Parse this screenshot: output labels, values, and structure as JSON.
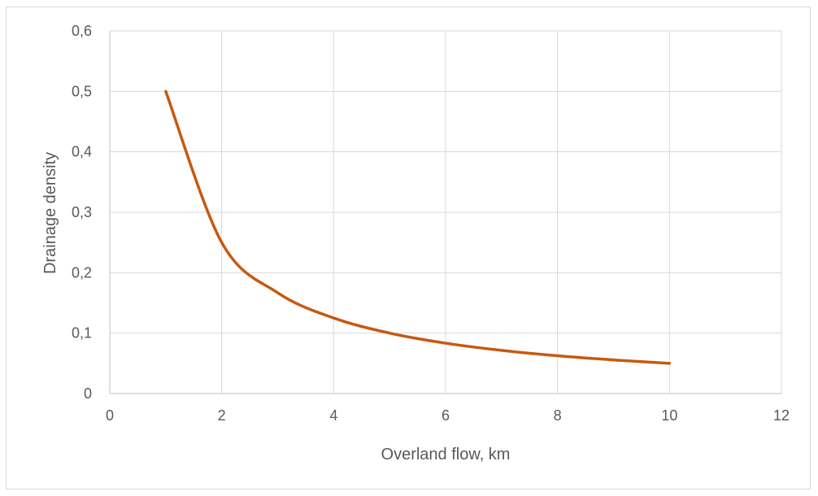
{
  "chart_data": {
    "type": "line",
    "title": "",
    "xlabel": "Overland flow, km",
    "ylabel": "Drainage density",
    "xlim": [
      0,
      12
    ],
    "ylim": [
      0,
      0.6
    ],
    "x_ticks": [
      0,
      2,
      4,
      6,
      8,
      10,
      12
    ],
    "x_tick_labels": [
      "0",
      "2",
      "4",
      "6",
      "8",
      "10",
      "12"
    ],
    "y_ticks": [
      0,
      0.1,
      0.2,
      0.3,
      0.4,
      0.5,
      0.6
    ],
    "y_tick_labels": [
      "0",
      "0,1",
      "0,2",
      "0,3",
      "0,4",
      "0,5",
      "0,6"
    ],
    "grid": true,
    "legend": "none",
    "series": [
      {
        "color": "#c55a11",
        "x": [
          1,
          2,
          3,
          4,
          5,
          6,
          7,
          8,
          9,
          10
        ],
        "values": [
          0.5,
          0.25,
          0.1667,
          0.125,
          0.1,
          0.0833,
          0.0714,
          0.0625,
          0.0556,
          0.05
        ]
      }
    ]
  }
}
